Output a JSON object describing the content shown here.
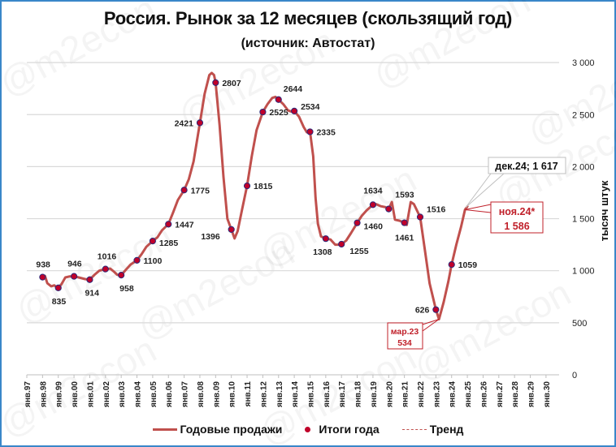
{
  "title": "Россия. Рынок за 12 месяцев (скользящий год)",
  "subtitle": "(источник: Автостат)",
  "watermark": "@m2econ",
  "colors": {
    "line": "#c0504d",
    "marker": "#c0002a",
    "marker_border": "#2b2b7a",
    "callout_red": "#c0202a",
    "border": "#3a87c9",
    "grid": "#d9d9d9"
  },
  "legend": {
    "line_label": "Годовые продажи",
    "marker_label": "Итоги года",
    "trend_label": "Тренд"
  },
  "callouts": {
    "mar23": {
      "line1": "мар.23",
      "line2": "534"
    },
    "nov24": {
      "line1": "ноя.24*",
      "line2": "1 586"
    },
    "dec24": {
      "label": "дек.24; 1 617"
    }
  },
  "chart_data": {
    "type": "line",
    "title": "Россия. Рынок за 12 месяцев (скользящий год)",
    "subtitle": "(источник: Автостат)",
    "xlabel": "",
    "ylabel": "тысяч штук",
    "ylim": [
      0,
      3000
    ],
    "yticks": [
      0,
      500,
      1000,
      1500,
      2000,
      2500,
      3000
    ],
    "ytick_labels": [
      "0",
      "500",
      "1 000",
      "1 500",
      "2 000",
      "2 500",
      "3 000"
    ],
    "y_axis_position": "right",
    "grid": true,
    "legend_position": "bottom",
    "x_tick_labels": [
      "янв.97",
      "янв.98",
      "янв.99",
      "янв.00",
      "янв.01",
      "янв.02",
      "янв.03",
      "янв.04",
      "янв.05",
      "янв.06",
      "янв.07",
      "янв.08",
      "янв.09",
      "янв.10",
      "янв.11",
      "янв.12",
      "янв.13",
      "янв.14",
      "янв.15",
      "янв.16",
      "янв.17",
      "янв.18",
      "янв.19",
      "янв.20",
      "янв.21",
      "янв.22",
      "янв.23",
      "янв.24",
      "янв.25",
      "янв.26",
      "янв.27",
      "янв.28",
      "янв.29",
      "янв.30"
    ],
    "series": [
      {
        "name": "Итоги года",
        "type": "scatter",
        "x": [
          "янв.98",
          "янв.99",
          "янв.00",
          "янв.01",
          "янв.02",
          "янв.03",
          "янв.04",
          "янв.05",
          "янв.06",
          "янв.07",
          "янв.08",
          "янв.09",
          "янв.10",
          "янв.11",
          "янв.12",
          "янв.13",
          "янв.14",
          "янв.15",
          "янв.16",
          "янв.17",
          "янв.18",
          "янв.19",
          "янв.20",
          "янв.21",
          "янв.22",
          "янв.23",
          "янв.24"
        ],
        "values": [
          938,
          835,
          946,
          914,
          1016,
          958,
          1100,
          1285,
          1447,
          1775,
          2421,
          2807,
          1396,
          1815,
          2525,
          2644,
          2534,
          2335,
          1308,
          1255,
          1460,
          1634,
          1593,
          1461,
          1516,
          626,
          1059
        ]
      },
      {
        "name": "Годовые продажи",
        "type": "line",
        "note": "rolling 12-month sales, monthly",
        "key_points": [
          {
            "x": "ноя.08",
            "y": 2900
          },
          {
            "x": "мар.10",
            "y": 1310
          },
          {
            "x": "мар.23",
            "y": 534
          },
          {
            "x": "ноя.24",
            "y": 1586
          },
          {
            "x": "дек.24",
            "y": 1617
          }
        ]
      },
      {
        "name": "Тренд",
        "type": "line",
        "values": []
      }
    ],
    "annotations": [
      "мар.23 534",
      "ноя.24* 1 586",
      "дек.24; 1 617"
    ]
  }
}
